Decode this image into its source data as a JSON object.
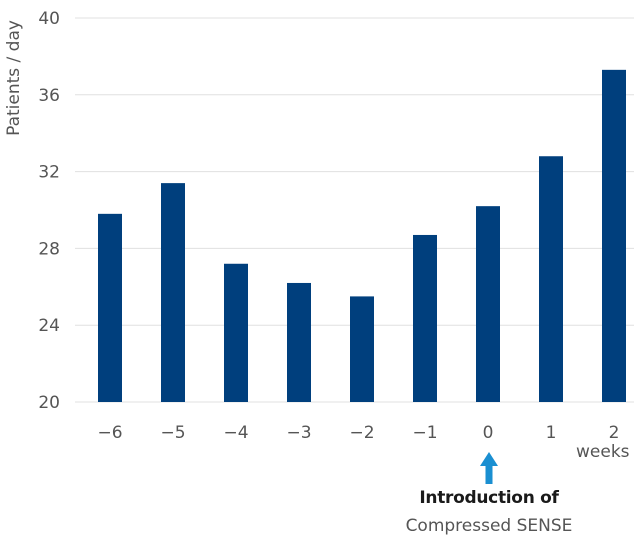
{
  "chart_data": {
    "type": "bar",
    "categories": [
      "−6",
      "−5",
      "−4",
      "−3",
      "−2",
      "−1",
      "0",
      "1",
      "2"
    ],
    "values": [
      29.8,
      31.4,
      27.2,
      26.2,
      25.5,
      28.7,
      30.2,
      32.8,
      37.3
    ],
    "ylabel": "Patients / day",
    "xunit": "weeks",
    "ylim": [
      20,
      40
    ],
    "yticks": [
      "20",
      "24",
      "28",
      "32",
      "36",
      "40"
    ],
    "grid": true,
    "bar_color": "#003f7d",
    "annotation": {
      "line1": "Introduction of",
      "line2": "Compressed SENSE",
      "at_category": "0",
      "arrow_color": "#1a8fd1"
    }
  }
}
